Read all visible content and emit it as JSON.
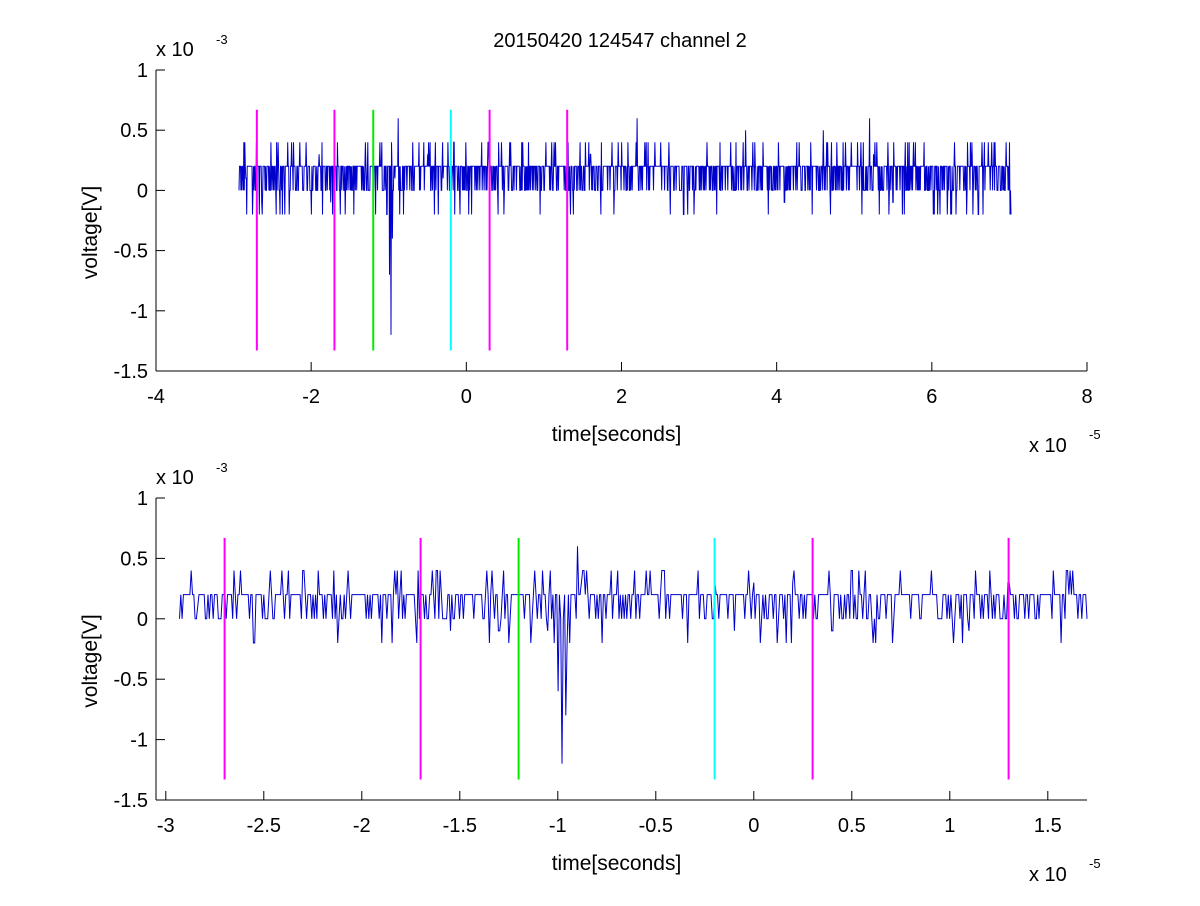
{
  "figure": {
    "title": "20150420 124547 channel 2"
  },
  "chart_data": [
    {
      "type": "line",
      "title": "20150420 124547 channel 2",
      "xlabel": "time[seconds]",
      "ylabel": "voltage[V]",
      "x_exponent_label": "x 10",
      "x_exponent": "-5",
      "y_exponent_label": "x 10",
      "y_exponent": "-3",
      "xlim": [
        -4,
        8
      ],
      "ylim": [
        -1.5,
        1
      ],
      "xticks": [
        -4,
        -2,
        0,
        2,
        4,
        6,
        8
      ],
      "xtick_labels": [
        "-4",
        "-2",
        "0",
        "2",
        "4",
        "6",
        "8"
      ],
      "yticks": [
        -1.5,
        -1,
        -0.5,
        0,
        0.5,
        1
      ],
      "ytick_labels": [
        "-1.5",
        "-1",
        "-0.5",
        "0",
        "0.5",
        "1"
      ],
      "grid": false,
      "trace": {
        "color": "#0000cc",
        "x_start": -2.93,
        "x_end": 7.02,
        "points": [
          [
            -2.93,
            0.0
          ],
          [
            -2.9,
            0.2
          ],
          [
            -2.87,
            0.4
          ],
          [
            -2.84,
            0.1
          ],
          [
            -2.8,
            0.2
          ],
          [
            -2.75,
            0.0
          ],
          [
            -2.7,
            0.3
          ],
          [
            -2.64,
            -0.1
          ],
          [
            -2.55,
            0.2
          ],
          [
            -2.45,
            -0.2
          ],
          [
            -2.3,
            0.4
          ],
          [
            -2.1,
            0.0
          ],
          [
            -1.9,
            0.3
          ],
          [
            -1.75,
            -0.1
          ],
          [
            -1.7,
            0.2
          ],
          [
            -1.5,
            0.0
          ],
          [
            -1.3,
            0.4
          ],
          [
            -1.2,
            0.1
          ],
          [
            -1.15,
            0.2
          ],
          [
            -1.08,
            0.0
          ],
          [
            -1.02,
            -0.2
          ],
          [
            -0.99,
            -0.7
          ],
          [
            -0.97,
            -1.2
          ],
          [
            -0.95,
            -0.4
          ],
          [
            -0.92,
            0.1
          ],
          [
            -0.88,
            0.6
          ],
          [
            -0.82,
            0.2
          ],
          [
            -0.7,
            0.0
          ],
          [
            -0.5,
            0.3
          ],
          [
            -0.3,
            0.1
          ],
          [
            -0.15,
            -0.2
          ],
          [
            0.0,
            0.2
          ],
          [
            0.2,
            0.4
          ],
          [
            0.3,
            0.0
          ],
          [
            0.5,
            0.2
          ],
          [
            0.8,
            0.4
          ],
          [
            1.3,
            -0.1
          ],
          [
            1.6,
            0.3
          ],
          [
            2.2,
            0.6
          ],
          [
            2.3,
            0.4
          ],
          [
            2.6,
            0.0
          ],
          [
            2.8,
            -0.2
          ],
          [
            3.1,
            0.4
          ],
          [
            3.6,
            0.5
          ],
          [
            4.1,
            -0.1
          ],
          [
            4.6,
            0.5
          ],
          [
            5.0,
            0.2
          ],
          [
            5.1,
            -0.2
          ],
          [
            5.2,
            0.6
          ],
          [
            5.25,
            0.3
          ],
          [
            5.5,
            -0.1
          ],
          [
            5.9,
            0.4
          ],
          [
            6.2,
            -0.2
          ],
          [
            6.5,
            0.4
          ],
          [
            6.6,
            -0.2
          ],
          [
            6.8,
            0.4
          ],
          [
            7.02,
            -0.2
          ]
        ]
      },
      "markers": [
        {
          "x": -2.7,
          "color": "#ff00ff"
        },
        {
          "x": -1.7,
          "color": "#ff00ff"
        },
        {
          "x": -1.2,
          "color": "#00ee00"
        },
        {
          "x": -0.2,
          "color": "#00ffff"
        },
        {
          "x": 0.3,
          "color": "#ff00ff"
        },
        {
          "x": 1.3,
          "color": "#ff00ff"
        }
      ],
      "marker_ymin": -1.33,
      "marker_ymax": 0.67
    },
    {
      "type": "line",
      "title": "",
      "xlabel": "time[seconds]",
      "ylabel": "voltage[V]",
      "x_exponent_label": "x 10",
      "x_exponent": "-5",
      "y_exponent_label": "x 10",
      "y_exponent": "-3",
      "xlim": [
        -3.05,
        1.7
      ],
      "ylim": [
        -1.5,
        1
      ],
      "xticks": [
        -3,
        -2.5,
        -2,
        -1.5,
        -1,
        -0.5,
        0,
        0.5,
        1,
        1.5
      ],
      "xtick_labels": [
        "-3",
        "-2.5",
        "-2",
        "-1.5",
        "-1",
        "-0.5",
        "0",
        "0.5",
        "1",
        "1.5"
      ],
      "yticks": [
        -1.5,
        -1,
        -0.5,
        0,
        0.5,
        1
      ],
      "ytick_labels": [
        "-1.5",
        "-1",
        "-0.5",
        "0",
        "0.5",
        "1"
      ],
      "grid": false,
      "trace": {
        "color": "#0000cc",
        "x_start": -2.93,
        "x_end": 1.7,
        "points": [
          [
            -2.93,
            0.0
          ],
          [
            -2.9,
            0.2
          ],
          [
            -2.87,
            0.4
          ],
          [
            -2.84,
            0.1
          ],
          [
            -2.6,
            0.2
          ],
          [
            -2.55,
            -0.2
          ],
          [
            -2.4,
            0.2
          ],
          [
            -2.3,
            0.4
          ],
          [
            -2.1,
            0.0
          ],
          [
            -2.07,
            0.4
          ],
          [
            -1.98,
            0.0
          ],
          [
            -1.9,
            -0.2
          ],
          [
            -1.82,
            0.4
          ],
          [
            -1.7,
            0.2
          ],
          [
            -1.6,
            0.4
          ],
          [
            -1.55,
            -0.1
          ],
          [
            -1.45,
            0.2
          ],
          [
            -1.3,
            -0.1
          ],
          [
            -1.22,
            0.2
          ],
          [
            -1.12,
            0.4
          ],
          [
            -1.05,
            -0.1
          ],
          [
            -1.02,
            -0.2
          ],
          [
            -1.0,
            -0.6
          ],
          [
            -0.98,
            -1.2
          ],
          [
            -0.96,
            -0.8
          ],
          [
            -0.94,
            -0.2
          ],
          [
            -0.92,
            0.2
          ],
          [
            -0.9,
            0.6
          ],
          [
            -0.88,
            0.3
          ],
          [
            -0.8,
            0.2
          ],
          [
            -0.6,
            0.0
          ],
          [
            -0.55,
            0.4
          ],
          [
            -0.5,
            0.2
          ],
          [
            -0.45,
            0.0
          ],
          [
            -0.2,
            0.3
          ],
          [
            -0.1,
            -0.1
          ],
          [
            0.0,
            0.3
          ],
          [
            0.1,
            0.0
          ],
          [
            0.2,
            0.3
          ],
          [
            0.3,
            0.2
          ],
          [
            0.4,
            -0.1
          ],
          [
            0.5,
            0.4
          ],
          [
            0.6,
            0.0
          ],
          [
            0.75,
            0.4
          ],
          [
            0.95,
            0.0
          ],
          [
            1.1,
            -0.1
          ],
          [
            1.3,
            0.3
          ],
          [
            1.6,
            0.4
          ],
          [
            1.7,
            0.0
          ]
        ]
      },
      "markers": [
        {
          "x": -2.7,
          "color": "#ff00ff"
        },
        {
          "x": -1.7,
          "color": "#ff00ff"
        },
        {
          "x": -1.2,
          "color": "#00ee00"
        },
        {
          "x": -0.2,
          "color": "#00ffff"
        },
        {
          "x": 0.3,
          "color": "#ff00ff"
        },
        {
          "x": 1.3,
          "color": "#ff00ff"
        }
      ],
      "marker_ymin": -1.33,
      "marker_ymax": 0.67
    }
  ]
}
